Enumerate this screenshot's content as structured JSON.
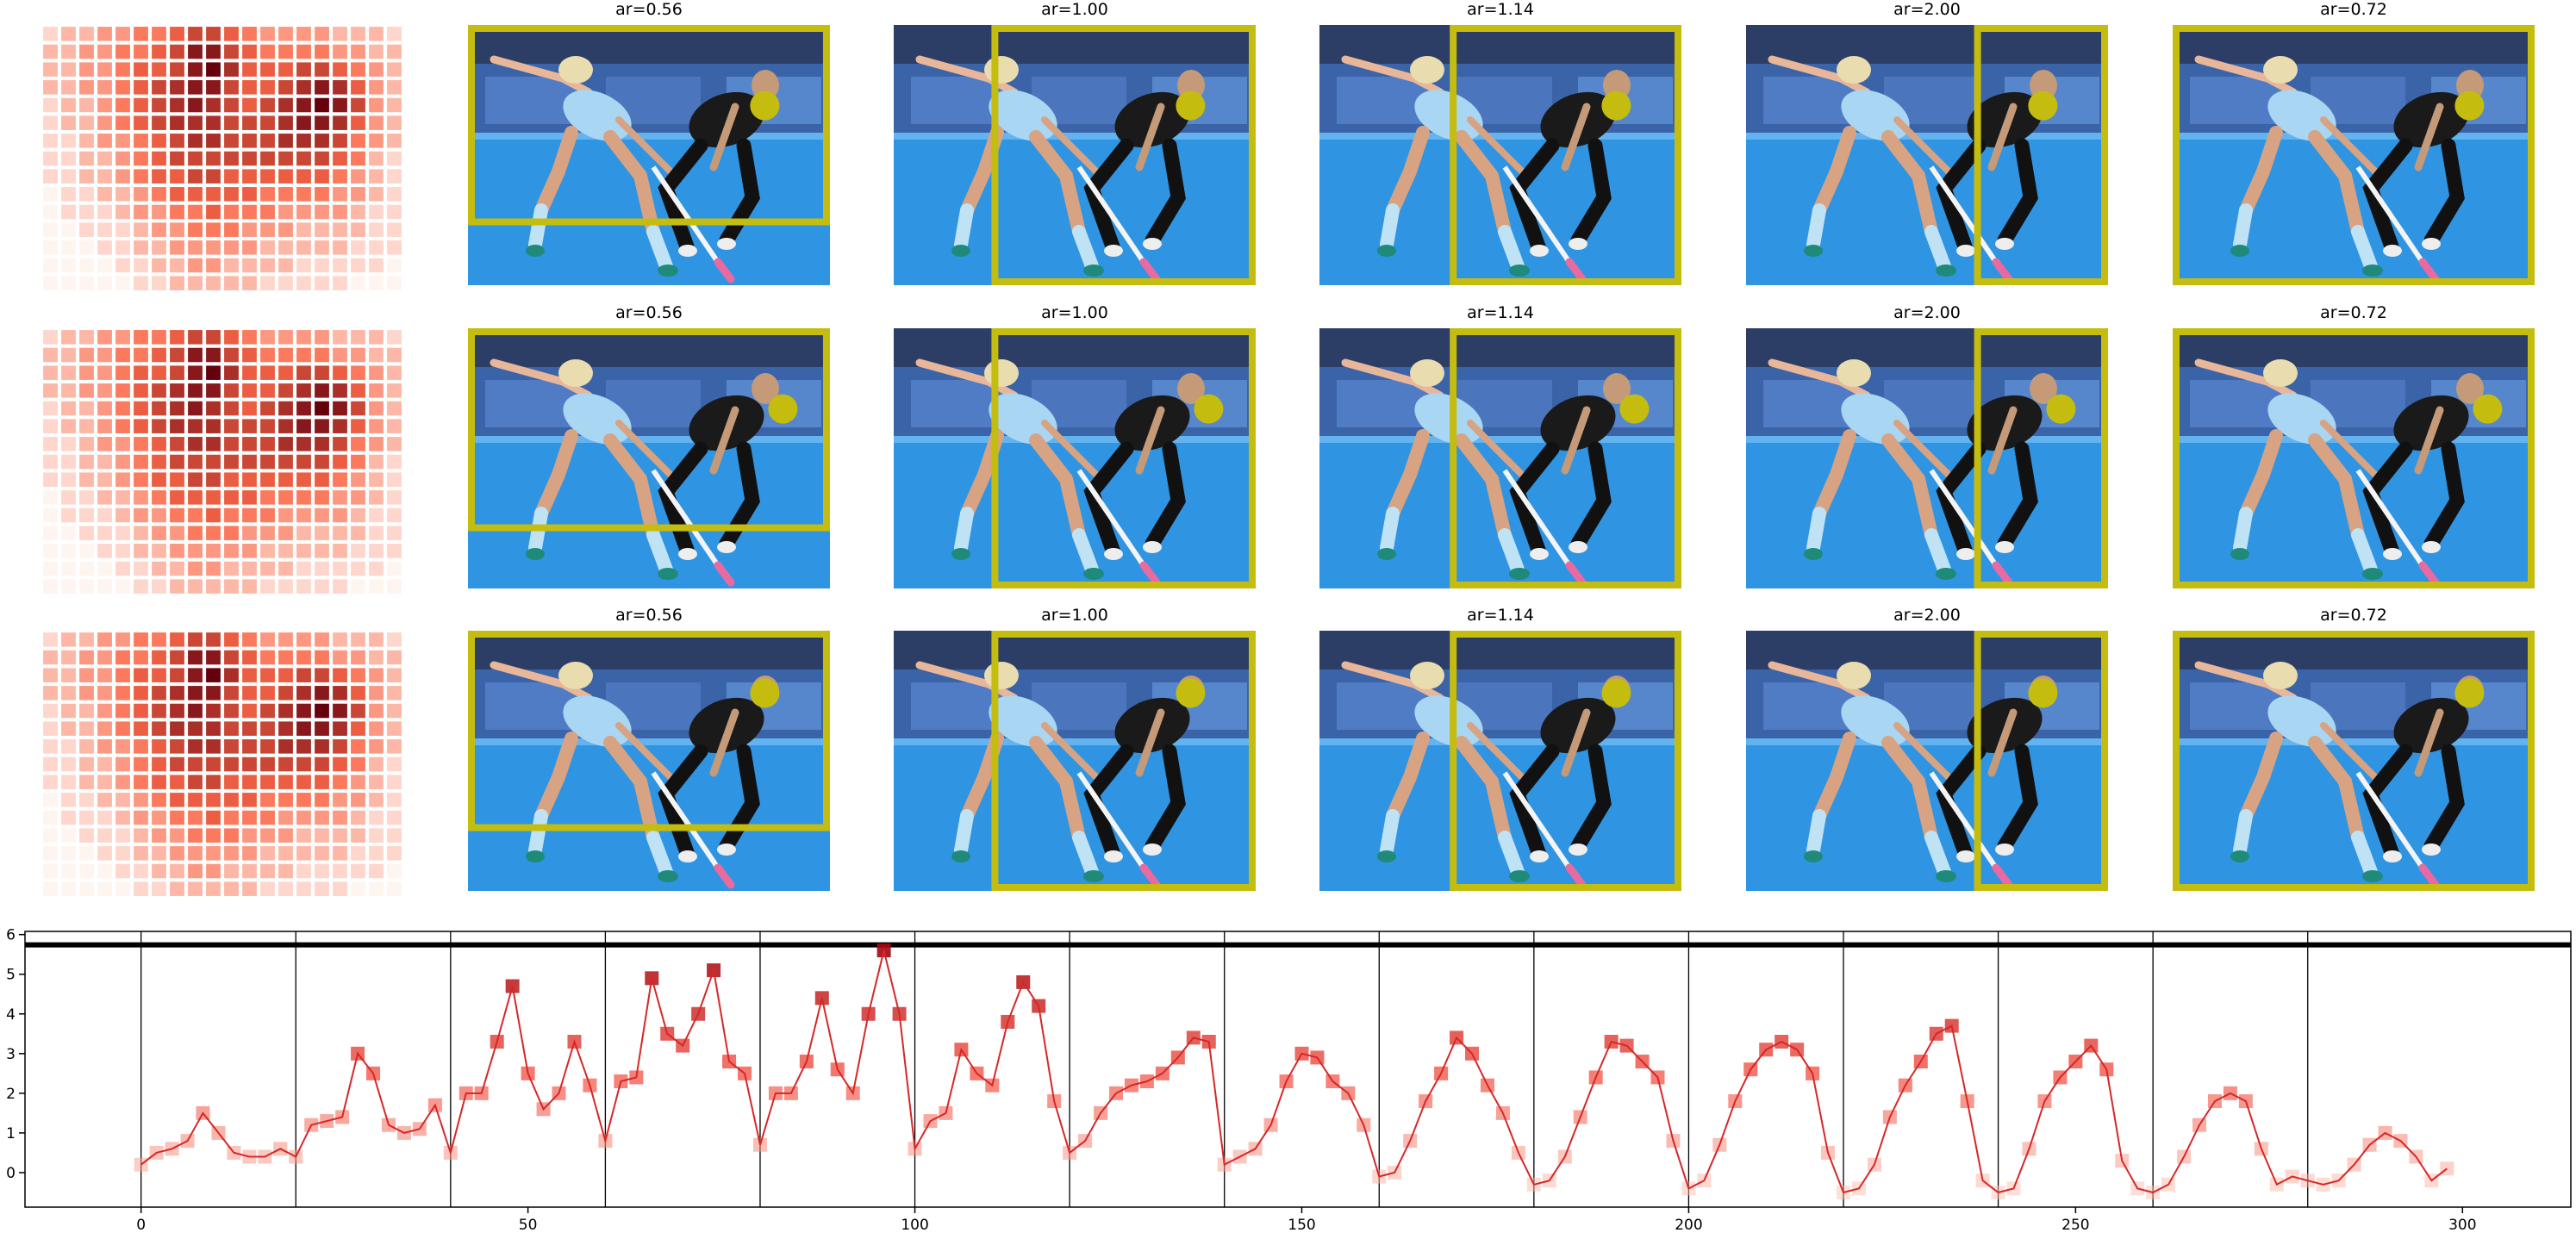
{
  "heatmap": {
    "colormap": [
      "#fff5f0",
      "#fb6a4a",
      "#67000d"
    ],
    "vmax": 9,
    "values": [
      [
        1,
        2,
        2,
        3,
        3,
        4,
        4,
        5,
        6,
        6,
        5,
        4,
        3,
        3,
        3,
        3,
        2,
        2,
        2,
        1
      ],
      [
        2,
        2,
        3,
        3,
        4,
        4,
        5,
        6,
        8,
        8,
        6,
        5,
        4,
        4,
        4,
        4,
        3,
        3,
        2,
        2
      ],
      [
        2,
        2,
        3,
        3,
        4,
        5,
        5,
        6,
        8,
        9,
        7,
        5,
        5,
        5,
        6,
        6,
        5,
        4,
        3,
        2
      ],
      [
        2,
        2,
        3,
        3,
        4,
        5,
        6,
        7,
        8,
        8,
        6,
        5,
        5,
        6,
        7,
        8,
        7,
        5,
        3,
        2
      ],
      [
        1,
        2,
        2,
        3,
        4,
        5,
        6,
        7,
        8,
        7,
        6,
        5,
        6,
        7,
        8,
        9,
        8,
        6,
        3,
        2
      ],
      [
        1,
        2,
        2,
        3,
        4,
        5,
        6,
        7,
        7,
        7,
        6,
        6,
        6,
        7,
        8,
        8,
        7,
        5,
        3,
        2
      ],
      [
        1,
        1,
        2,
        3,
        3,
        4,
        5,
        6,
        7,
        7,
        6,
        6,
        6,
        7,
        7,
        7,
        6,
        4,
        3,
        2
      ],
      [
        1,
        1,
        2,
        2,
        3,
        4,
        5,
        6,
        6,
        6,
        6,
        6,
        6,
        6,
        6,
        6,
        5,
        4,
        2,
        1
      ],
      [
        1,
        1,
        2,
        2,
        3,
        4,
        5,
        5,
        6,
        6,
        5,
        5,
        5,
        5,
        5,
        5,
        4,
        3,
        2,
        1
      ],
      [
        0,
        1,
        1,
        2,
        2,
        3,
        4,
        5,
        5,
        5,
        5,
        5,
        4,
        4,
        4,
        4,
        3,
        3,
        2,
        1
      ],
      [
        0,
        1,
        1,
        1,
        2,
        3,
        3,
        4,
        4,
        5,
        4,
        4,
        4,
        3,
        3,
        3,
        3,
        2,
        1,
        1
      ],
      [
        0,
        0,
        1,
        1,
        1,
        2,
        3,
        3,
        4,
        4,
        4,
        3,
        3,
        3,
        2,
        2,
        2,
        2,
        1,
        1
      ],
      [
        0,
        0,
        0,
        1,
        1,
        2,
        2,
        3,
        3,
        3,
        3,
        3,
        2,
        2,
        2,
        2,
        2,
        1,
        1,
        1
      ],
      [
        0,
        0,
        0,
        0,
        1,
        1,
        2,
        2,
        3,
        3,
        2,
        2,
        2,
        2,
        1,
        1,
        1,
        1,
        1,
        0
      ],
      [
        0,
        0,
        0,
        0,
        0,
        1,
        1,
        2,
        2,
        2,
        2,
        2,
        1,
        1,
        1,
        1,
        1,
        0,
        0,
        0
      ]
    ]
  },
  "panels": {
    "box_color": "#c4bd10",
    "rows": [
      {
        "titles": [
          "ar=0.56",
          "ar=1.00",
          "ar=1.14",
          "ar=2.00",
          "ar=0.72"
        ]
      },
      {
        "titles": [
          "ar=0.56",
          "ar=1.00",
          "ar=1.14",
          "ar=2.00",
          "ar=0.72"
        ]
      },
      {
        "titles": [
          "ar=0.56",
          "ar=1.00",
          "ar=1.14",
          "ar=2.00",
          "ar=0.72"
        ]
      }
    ]
  },
  "chart_data": {
    "type": "line",
    "xlim": [
      -15,
      314
    ],
    "ylim": [
      -0.87,
      6.08
    ],
    "xticks": [
      0,
      50,
      100,
      150,
      200,
      250,
      300
    ],
    "yticks": [
      0,
      1,
      2,
      3,
      4,
      5,
      6
    ],
    "vlines": [
      0,
      20,
      40,
      60,
      80,
      100,
      120,
      140,
      160,
      180,
      200,
      220,
      240,
      260,
      280
    ],
    "hline": 5.74,
    "marker_colormap": [
      "#fdd0c0",
      "#ef3b2c",
      "#99000d"
    ],
    "x": [
      0,
      2,
      4,
      6,
      8,
      10,
      12,
      14,
      16,
      18,
      20,
      22,
      24,
      26,
      28,
      30,
      32,
      34,
      36,
      38,
      40,
      42,
      44,
      46,
      48,
      50,
      52,
      54,
      56,
      58,
      60,
      62,
      64,
      66,
      68,
      70,
      72,
      74,
      76,
      78,
      80,
      82,
      84,
      86,
      88,
      90,
      92,
      94,
      96,
      98,
      100,
      102,
      104,
      106,
      108,
      110,
      112,
      114,
      116,
      118,
      120,
      122,
      124,
      126,
      128,
      130,
      132,
      134,
      136,
      138,
      140,
      142,
      144,
      146,
      148,
      150,
      152,
      154,
      156,
      158,
      160,
      162,
      164,
      166,
      168,
      170,
      172,
      174,
      176,
      178,
      180,
      182,
      184,
      186,
      188,
      190,
      192,
      194,
      196,
      198,
      200,
      202,
      204,
      206,
      208,
      210,
      212,
      214,
      216,
      218,
      220,
      222,
      224,
      226,
      228,
      230,
      232,
      234,
      236,
      238,
      240,
      242,
      244,
      246,
      248,
      250,
      252,
      254,
      256,
      258,
      260,
      262,
      264,
      266,
      268,
      270,
      272,
      274,
      276,
      278,
      280,
      282,
      284,
      286,
      288,
      290,
      292,
      294,
      296,
      298
    ],
    "series": [
      {
        "color": "#d62728",
        "values": [
          0.2,
          0.5,
          0.6,
          0.8,
          1.5,
          1.0,
          0.5,
          0.4,
          0.4,
          0.6,
          0.4,
          1.2,
          1.3,
          1.4,
          3.0,
          2.5,
          1.2,
          1.0,
          1.1,
          1.7,
          0.5,
          2.0,
          2.0,
          3.3,
          4.7,
          2.5,
          1.6,
          2.0,
          3.3,
          2.2,
          0.8,
          2.3,
          2.4,
          4.9,
          3.5,
          3.2,
          4.0,
          5.1,
          2.8,
          2.5,
          0.7,
          2.0,
          2.0,
          2.8,
          4.4,
          2.6,
          2.0,
          4.0,
          5.6,
          4.0,
          0.6,
          1.3,
          1.5,
          3.1,
          2.5,
          2.2,
          3.8,
          4.8,
          4.2,
          1.8,
          0.5,
          0.8,
          1.5,
          2.0,
          2.2,
          2.3,
          2.5,
          2.9,
          3.4,
          3.3,
          0.2,
          0.4,
          0.6,
          1.2,
          2.3,
          3.0,
          2.9,
          2.3,
          2.0,
          1.2,
          -0.1,
          0.0,
          0.8,
          1.8,
          2.5,
          3.4,
          3.0,
          2.2,
          1.5,
          0.5,
          -0.3,
          -0.2,
          0.4,
          1.4,
          2.4,
          3.3,
          3.2,
          2.8,
          2.4,
          0.8,
          -0.4,
          -0.2,
          0.7,
          1.8,
          2.6,
          3.1,
          3.3,
          3.1,
          2.5,
          0.5,
          -0.5,
          -0.4,
          0.2,
          1.4,
          2.2,
          2.8,
          3.5,
          3.7,
          1.8,
          -0.2,
          -0.5,
          -0.4,
          0.6,
          1.8,
          2.4,
          2.8,
          3.2,
          2.6,
          0.3,
          -0.4,
          -0.5,
          -0.3,
          0.4,
          1.2,
          1.8,
          2.0,
          1.8,
          0.6,
          -0.3,
          -0.1,
          -0.2,
          -0.3,
          -0.2,
          0.2,
          0.7,
          1.0,
          0.8,
          0.4,
          -0.2,
          0.1
        ]
      }
    ]
  }
}
